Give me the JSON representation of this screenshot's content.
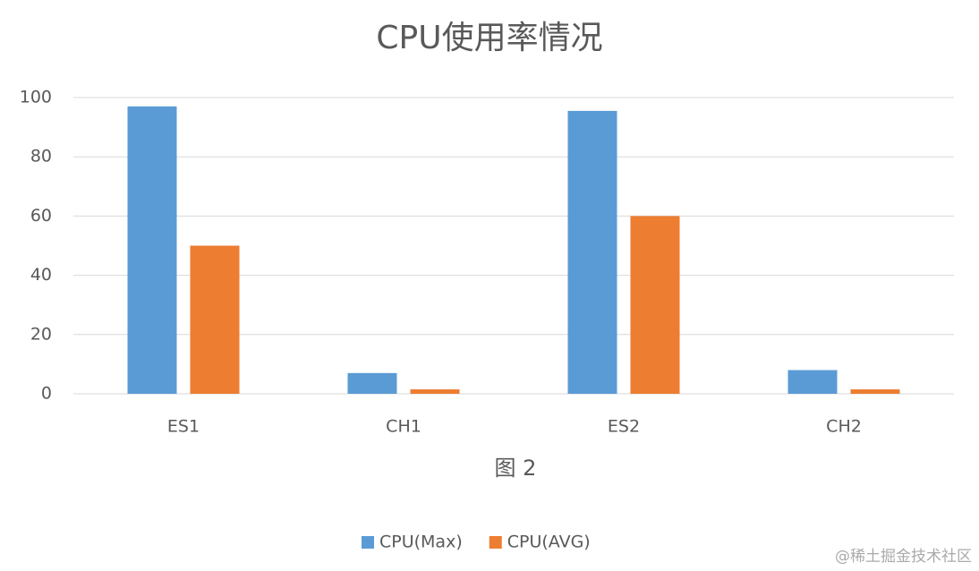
{
  "chart_data": {
    "type": "grouped-bar",
    "title": "CPU使用率情况",
    "x_label": "图 2",
    "categories": [
      "ES1",
      "CH1",
      "ES2",
      "CH2"
    ],
    "series": [
      {
        "name": "CPU(Max)",
        "color": "#5b9bd5",
        "values": [
          97,
          7,
          95.5,
          8
        ]
      },
      {
        "name": "CPU(AVG)",
        "color": "#ed7d31",
        "values": [
          50,
          1.5,
          60,
          1.5
        ]
      }
    ],
    "ylim": [
      0,
      100
    ],
    "yticks": [
      0,
      20,
      40,
      60,
      80,
      100
    ],
    "grid": true,
    "legend": "bottom",
    "watermark": "@稀土掘金技术社区"
  }
}
